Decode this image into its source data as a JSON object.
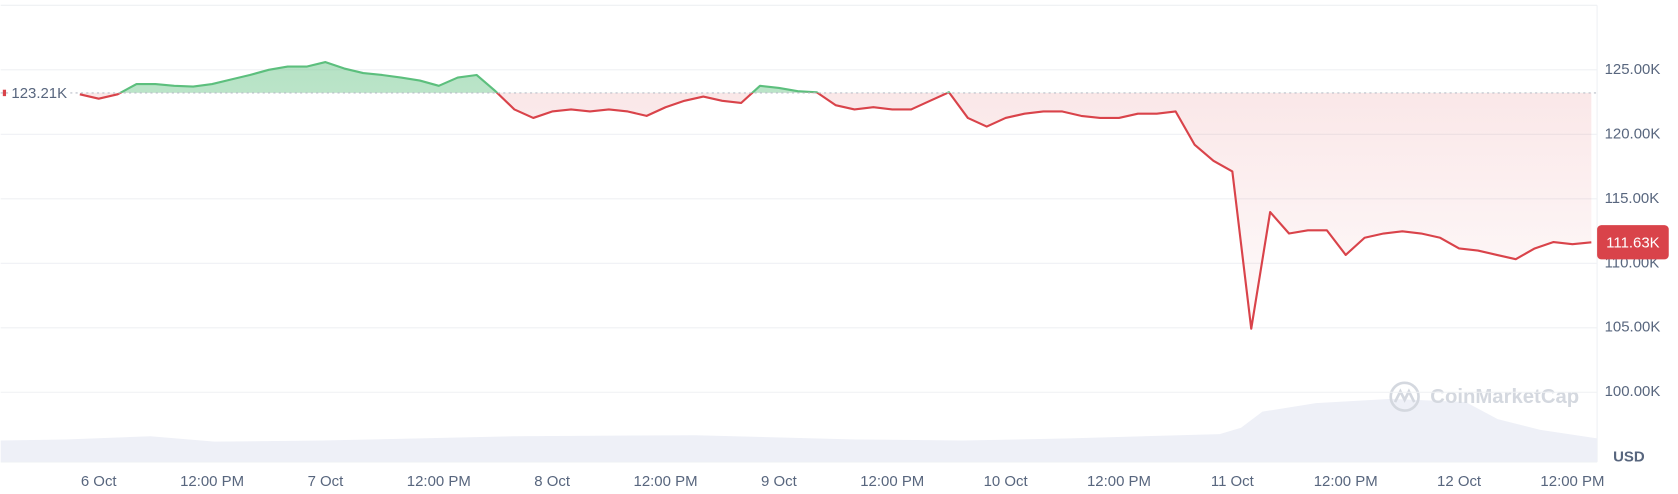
{
  "chart_data": {
    "type": "line",
    "categories": [
      null,
      "6 Oct",
      null,
      null,
      null,
      null,
      null,
      "12:00 PM",
      null,
      null,
      null,
      null,
      null,
      "7 Oct",
      null,
      null,
      null,
      null,
      null,
      "12:00 PM",
      null,
      null,
      null,
      null,
      null,
      "8 Oct",
      null,
      null,
      null,
      null,
      null,
      "12:00 PM",
      null,
      null,
      null,
      null,
      null,
      "9 Oct",
      null,
      null,
      null,
      null,
      null,
      "12:00 PM",
      null,
      null,
      null,
      null,
      null,
      "10 Oct",
      null,
      null,
      null,
      null,
      null,
      "12:00 PM",
      null,
      null,
      null,
      null,
      null,
      "11 Oct",
      null,
      null,
      null,
      null,
      null,
      "12:00 PM",
      null,
      null,
      null,
      null,
      null,
      "12 Oct",
      null,
      null,
      null,
      null,
      null,
      "12:00 PM",
      null
    ],
    "values": [
      123.1,
      122.76,
      123.1,
      123.9,
      123.9,
      123.76,
      123.7,
      123.9,
      124.25,
      124.6,
      125.0,
      125.25,
      125.25,
      125.6,
      125.1,
      124.75,
      124.6,
      124.4,
      124.17,
      123.76,
      124.4,
      124.6,
      123.34,
      121.93,
      121.27,
      121.77,
      121.93,
      121.77,
      121.93,
      121.77,
      121.43,
      122.1,
      122.6,
      122.93,
      122.6,
      122.43,
      123.76,
      123.6,
      123.34,
      123.26,
      122.26,
      121.93,
      122.1,
      121.93,
      121.93,
      122.6,
      123.26,
      121.27,
      120.6,
      121.27,
      121.6,
      121.77,
      121.77,
      121.43,
      121.27,
      121.27,
      121.6,
      121.6,
      121.77,
      119.2,
      117.95,
      117.12,
      104.93,
      113.97,
      112.31,
      112.56,
      112.56,
      110.65,
      111.98,
      112.31,
      112.48,
      112.31,
      111.98,
      111.15,
      110.99,
      110.65,
      110.32,
      111.15,
      111.65,
      111.48,
      111.63
    ],
    "up_color": "#5cbf7d",
    "down_color": "#d9434a",
    "baseline": {
      "value": 123.21,
      "label": "123.21K"
    },
    "last_price": {
      "value": 111.63,
      "label": "111.63K"
    },
    "ylim": [
      94.6,
      130
    ],
    "yticks": [
      {
        "value": 100,
        "label": "100.00K"
      },
      {
        "value": 105,
        "label": "105.00K"
      },
      {
        "value": 110,
        "label": "110.00K"
      },
      {
        "value": 115,
        "label": "115.00K"
      },
      {
        "value": 120,
        "label": "120.00K"
      },
      {
        "value": 125,
        "label": "125.00K"
      }
    ],
    "y_axis_label": "USD",
    "watermark": "CoinMarketCap",
    "grid": true
  }
}
